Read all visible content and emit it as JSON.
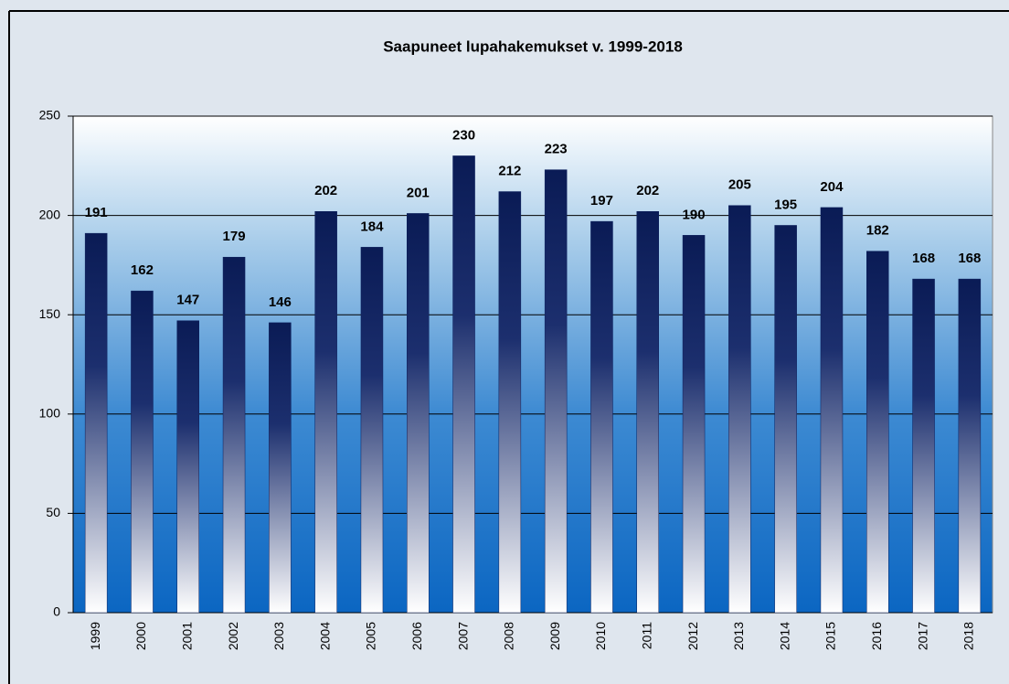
{
  "chart_data": {
    "type": "bar",
    "title": "Saapuneet lupahakemukset v. 1999-2018",
    "categories": [
      "1999",
      "2000",
      "2001",
      "2002",
      "2003",
      "2004",
      "2005",
      "2006",
      "2007",
      "2008",
      "2009",
      "2010",
      "2011",
      "2012",
      "2013",
      "2014",
      "2015",
      "2016",
      "2017",
      "2018"
    ],
    "values": [
      191,
      162,
      147,
      179,
      146,
      202,
      184,
      201,
      230,
      212,
      223,
      197,
      202,
      190,
      205,
      195,
      204,
      182,
      168,
      168
    ],
    "color": "#0a1f5c",
    "ylim": [
      0,
      250
    ],
    "yticks": [
      0,
      50,
      100,
      150,
      200,
      250
    ],
    "grid": true
  }
}
